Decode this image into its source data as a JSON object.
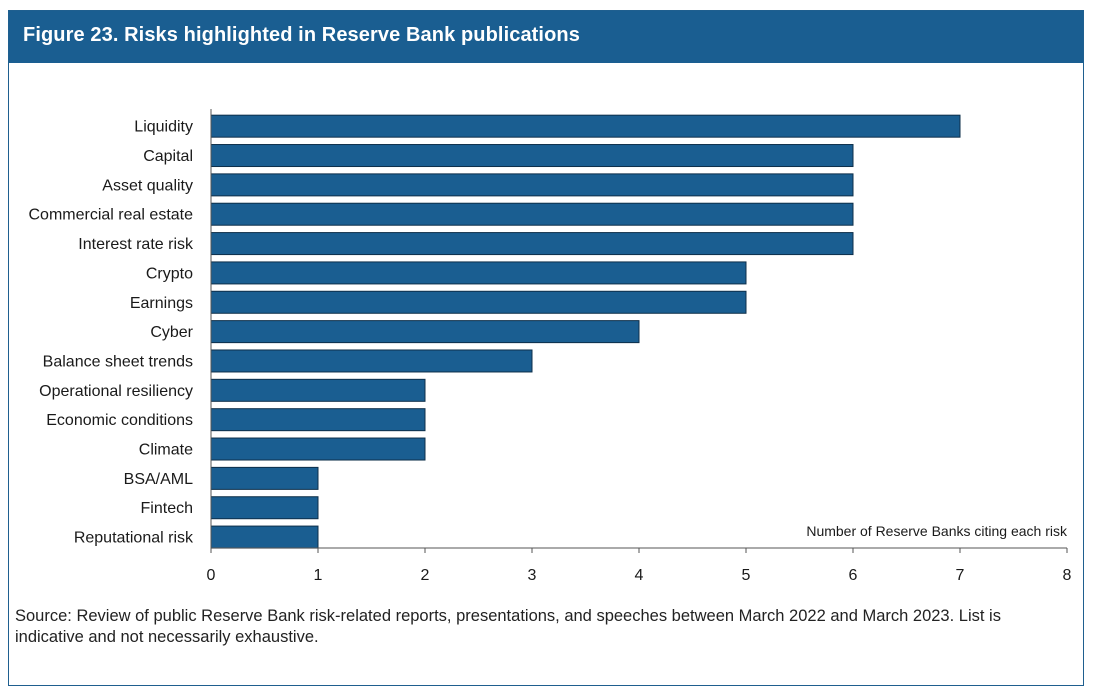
{
  "figure": {
    "title": "Figure 23. Risks highlighted in Reserve Bank publications",
    "source": "Source: Review of public Reserve Bank risk-related reports, presentations, and speeches between March 2022 and March 2023. List is indicative and not necessarily exhaustive."
  },
  "chart_data": {
    "type": "bar",
    "orientation": "horizontal",
    "title": "Figure 23. Risks highlighted in Reserve Bank publications",
    "xlabel": "Number of Reserve Banks citing each risk",
    "ylabel": "",
    "categories": [
      "Liquidity",
      "Capital",
      "Asset quality",
      "Commercial real estate",
      "Interest rate risk",
      "Crypto",
      "Earnings",
      "Cyber",
      "Balance sheet trends",
      "Operational resiliency",
      "Economic conditions",
      "Climate",
      "BSA/AML",
      "Fintech",
      "Reputational risk"
    ],
    "values": [
      7,
      6,
      6,
      6,
      6,
      5,
      5,
      4,
      3,
      2,
      2,
      2,
      1,
      1,
      1
    ],
    "xlim": [
      0,
      8
    ],
    "xticks": [
      "0",
      "1",
      "2",
      "3",
      "4",
      "5",
      "6",
      "7",
      "8"
    ],
    "bar_color": "#1a5e91",
    "grid": false
  }
}
